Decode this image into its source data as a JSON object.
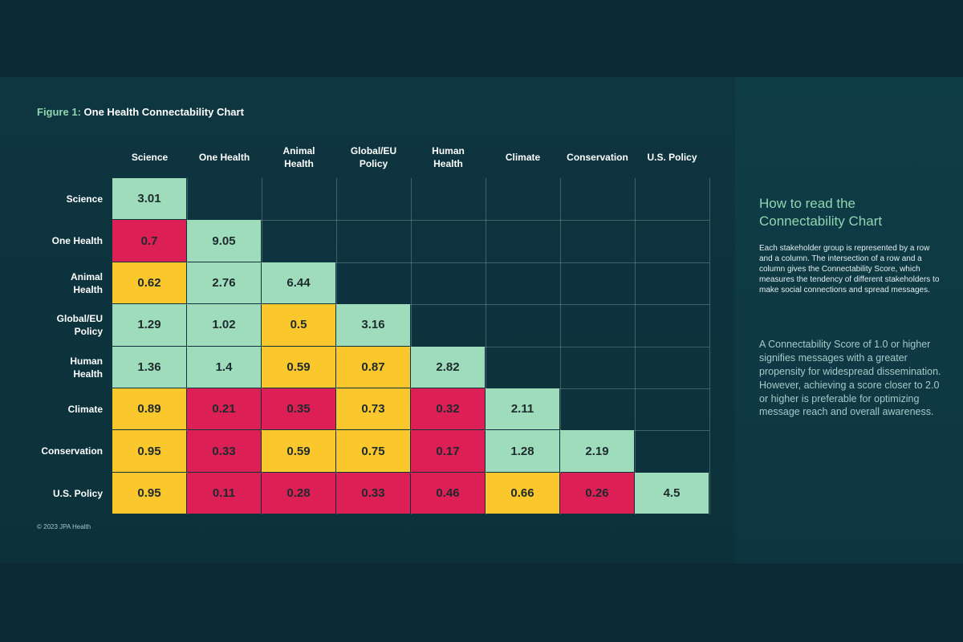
{
  "figure": {
    "label": "Figure 1:",
    "title": "One Health Connectability Chart",
    "copyright": "© 2023 JPA Health"
  },
  "colors": {
    "high": "#9fdcbb",
    "mid": "#fac72c",
    "low": "#dc1f55",
    "background": "#0b2a33"
  },
  "chart_data": {
    "type": "heatmap",
    "title": "One Health Connectability Chart",
    "columns": [
      "Science",
      "One Health",
      "Animal Health",
      "Global/EU Policy",
      "Human Health",
      "Climate",
      "Conservation",
      "U.S. Policy"
    ],
    "column_labels": [
      [
        "Science"
      ],
      [
        "One Health"
      ],
      [
        "Animal",
        "Health"
      ],
      [
        "Global/EU",
        "Policy"
      ],
      [
        "Human",
        "Health"
      ],
      [
        "Climate"
      ],
      [
        "Conservation"
      ],
      [
        "U.S. Policy"
      ]
    ],
    "rows": [
      "Science",
      "One Health",
      "Animal Health",
      "Global/EU Policy",
      "Human Health",
      "Climate",
      "Conservation",
      "U.S. Policy"
    ],
    "row_labels": [
      [
        "Science"
      ],
      [
        "One Health"
      ],
      [
        "Animal",
        "Health"
      ],
      [
        "Global/EU",
        "Policy"
      ],
      [
        "Human",
        "Health"
      ],
      [
        "Climate"
      ],
      [
        "Conservation"
      ],
      [
        "U.S. Policy"
      ]
    ],
    "values": [
      [
        "3.01"
      ],
      [
        "0.7",
        "9.05"
      ],
      [
        "0.62",
        "2.76",
        "6.44"
      ],
      [
        "1.29",
        "1.02",
        "0.5",
        "3.16"
      ],
      [
        "1.36",
        "1.4",
        "0.59",
        "0.87",
        "2.82"
      ],
      [
        "0.89",
        "0.21",
        "0.35",
        "0.73",
        "0.32",
        "2.11"
      ],
      [
        "0.95",
        "0.33",
        "0.59",
        "0.75",
        "0.17",
        "1.28",
        "2.19"
      ],
      [
        "0.95",
        "0.11",
        "0.28",
        "0.33",
        "0.46",
        "0.66",
        "0.26",
        "4.5"
      ]
    ],
    "color_categories": [
      [
        "high"
      ],
      [
        "low",
        "high"
      ],
      [
        "mid",
        "high",
        "high"
      ],
      [
        "high",
        "high",
        "mid",
        "high"
      ],
      [
        "high",
        "high",
        "mid",
        "mid",
        "high"
      ],
      [
        "mid",
        "low",
        "low",
        "mid",
        "low",
        "high"
      ],
      [
        "mid",
        "low",
        "mid",
        "mid",
        "low",
        "high",
        "high"
      ],
      [
        "mid",
        "low",
        "low",
        "low",
        "low",
        "mid",
        "low",
        "high"
      ]
    ]
  },
  "explainer": {
    "title": "How to read the Connectability Chart",
    "paragraph1": "Each stakeholder group is represented by a row and a column. The intersection of a row and a column gives the Connectability Score, which measures the tendency of different stakeholders to make social connections and spread messages.",
    "paragraph2": "A Connectability Score of 1.0 or higher signifies messages with a greater propensity for widespread dissemination. However, achieving a score closer to 2.0 or higher is preferable for optimizing message reach and overall awareness."
  }
}
